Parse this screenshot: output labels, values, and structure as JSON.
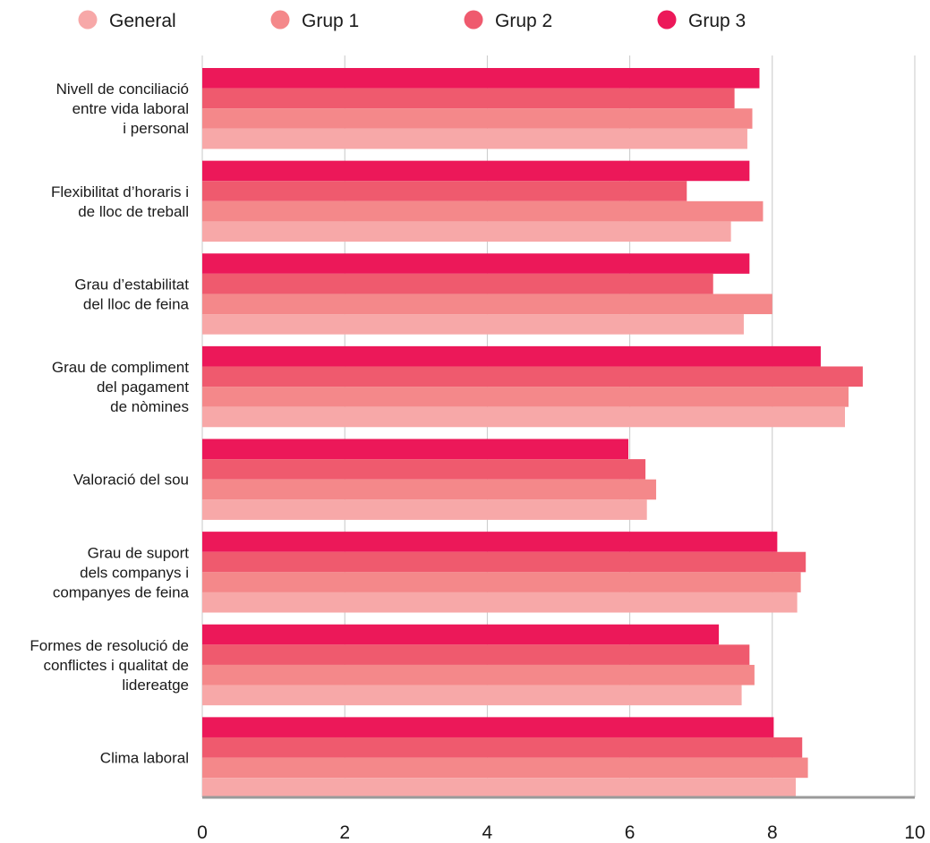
{
  "chart_data": {
    "type": "bar",
    "orientation": "horizontal",
    "xlim": [
      0,
      10
    ],
    "x_ticks": [
      "0",
      "2",
      "4",
      "6",
      "8",
      "10"
    ],
    "grid": true,
    "legend_position": "top",
    "categories": [
      [
        "Nivell de conciliació",
        "entre vida laboral",
        "i personal"
      ],
      [
        "Flexibilitat d’horaris i",
        "de lloc de treball"
      ],
      [
        "Grau d’estabilitat",
        "del lloc de feina"
      ],
      [
        "Grau de compliment",
        "del pagament",
        "de nòmines"
      ],
      [
        "Valoració del sou"
      ],
      [
        "Grau de suport",
        "dels companys i",
        "companyes de feina"
      ],
      [
        "Formes de resolució de",
        "conflictes i qualitat de",
        "lidereatge"
      ],
      [
        "Clima laboral"
      ]
    ],
    "series": [
      {
        "name": "General",
        "color": "#f7a8a8",
        "values": [
          7.65,
          7.42,
          7.6,
          9.02,
          6.24,
          8.35,
          7.57,
          8.33
        ]
      },
      {
        "name": "Grup 1",
        "color": "#f4888a",
        "values": [
          7.72,
          7.87,
          8.0,
          9.07,
          6.37,
          8.4,
          7.75,
          8.5
        ]
      },
      {
        "name": "Grup 2",
        "color": "#ef5a6e",
        "values": [
          7.47,
          6.8,
          7.17,
          9.27,
          6.22,
          8.47,
          7.68,
          8.42
        ]
      },
      {
        "name": "Grup 3",
        "color": "#ec1859",
        "values": [
          7.82,
          7.68,
          7.68,
          8.68,
          5.98,
          8.07,
          7.25,
          8.02
        ]
      }
    ]
  }
}
